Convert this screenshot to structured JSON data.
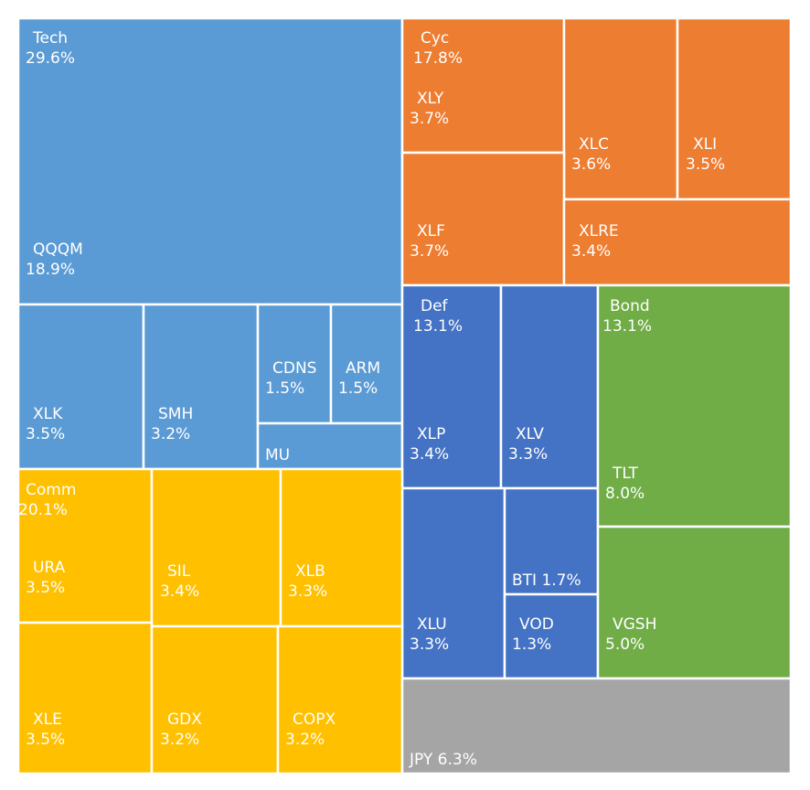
{
  "chart_data": {
    "type": "treemap",
    "colors": {
      "Tech": "#5b9bd5",
      "Cyc": "#ed7d31",
      "Def": "#4472c4",
      "Bond": "#70ad47",
      "Comm": "#ffc000",
      "JPY": "#a5a5a5"
    },
    "groups": [
      {
        "name": "Tech",
        "value_label": "29.6%",
        "items": [
          {
            "name": "QQQM",
            "value_label": "18.9%"
          },
          {
            "name": "XLK",
            "value_label": "3.5%"
          },
          {
            "name": "SMH",
            "value_label": "3.2%"
          },
          {
            "name": "CDNS",
            "value_label": "1.5%"
          },
          {
            "name": "ARM",
            "value_label": "1.5%"
          },
          {
            "name": "MU",
            "value_label": ""
          }
        ]
      },
      {
        "name": "Cyc",
        "value_label": "17.8%",
        "items": [
          {
            "name": "XLY",
            "value_label": "3.7%"
          },
          {
            "name": "XLC",
            "value_label": "3.6%"
          },
          {
            "name": "XLI",
            "value_label": "3.5%"
          },
          {
            "name": "XLF",
            "value_label": "3.7%"
          },
          {
            "name": "XLRE",
            "value_label": "3.4%"
          }
        ]
      },
      {
        "name": "Def",
        "value_label": "13.1%",
        "items": [
          {
            "name": "XLP",
            "value_label": "3.4%"
          },
          {
            "name": "XLV",
            "value_label": "3.3%"
          },
          {
            "name": "XLU",
            "value_label": "3.3%"
          },
          {
            "name": "BTI",
            "value_label": "1.7%"
          },
          {
            "name": "VOD",
            "value_label": "1.3%"
          }
        ]
      },
      {
        "name": "Bond",
        "value_label": "13.1%",
        "items": [
          {
            "name": "TLT",
            "value_label": "8.0%"
          },
          {
            "name": "VGSH",
            "value_label": "5.0%"
          }
        ]
      },
      {
        "name": "Comm",
        "value_label": "20.1%",
        "items": [
          {
            "name": "URA",
            "value_label": "3.5%"
          },
          {
            "name": "SIL",
            "value_label": "3.4%"
          },
          {
            "name": "XLB",
            "value_label": "3.3%"
          },
          {
            "name": "XLE",
            "value_label": "3.5%"
          },
          {
            "name": "GDX",
            "value_label": "3.2%"
          },
          {
            "name": "COPX",
            "value_label": "3.2%"
          }
        ]
      },
      {
        "name": "JPY",
        "value_label": "6.3%",
        "items": [
          {
            "name": "JPY",
            "value_label": "6.3%"
          }
        ]
      }
    ]
  }
}
